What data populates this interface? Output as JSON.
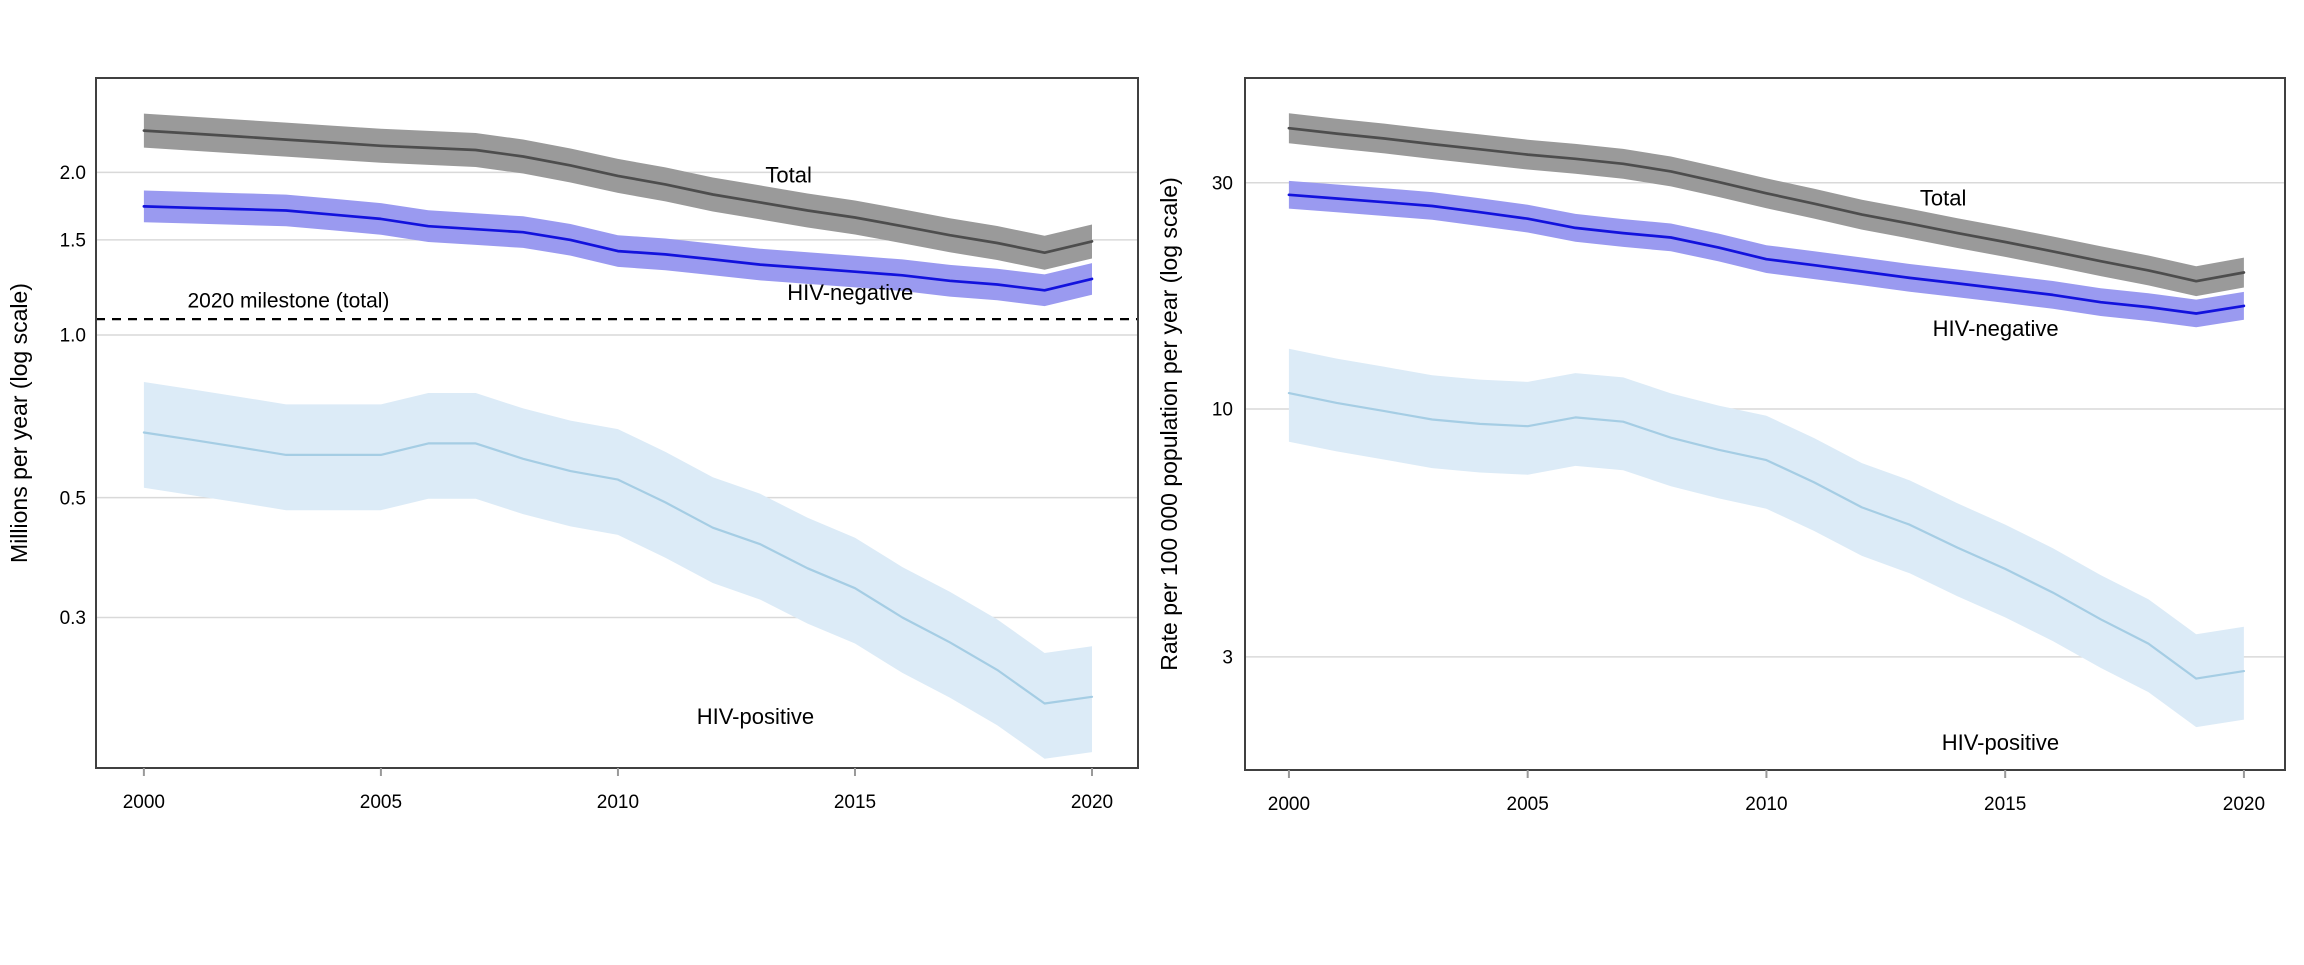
{
  "figure": {
    "background": "#ffffff",
    "border_color": "#404040",
    "gridline_color": "#d9d9d9",
    "tick_color": "#999999",
    "text_color": "#000000"
  },
  "chart_data": [
    {
      "id": "absolute-deaths",
      "type": "line",
      "title": "",
      "xlabel": "",
      "ylabel": "Millions per year (log scale)",
      "scale": "log",
      "grid": "horizontal-only",
      "legend_position": "none",
      "x_domain": [
        1998.99,
        2020.97
      ],
      "y_domain": [
        0.158,
        2.99
      ],
      "x_ticks": [
        2000,
        2005,
        2010,
        2015,
        2020
      ],
      "y_ticks": [
        {
          "value": 2.0,
          "label": "2.0"
        },
        {
          "value": 1.5,
          "label": "1.5"
        },
        {
          "value": 1.0,
          "label": "1.0"
        },
        {
          "value": 0.5,
          "label": "0.5"
        },
        {
          "value": 0.3,
          "label": "0.3"
        }
      ],
      "years": [
        2000,
        2001,
        2002,
        2003,
        2004,
        2005,
        2006,
        2007,
        2008,
        2009,
        2010,
        2011,
        2012,
        2013,
        2014,
        2015,
        2016,
        2017,
        2018,
        2019,
        2020
      ],
      "series": [
        {
          "name": "Total",
          "line_color": "#4d4d4d",
          "band_color": "#9a9a9a",
          "line_width": 2.7,
          "band_upper_ratio": 1.075,
          "band_lower_ratio": 0.93,
          "values": [
            2.39,
            2.36,
            2.33,
            2.3,
            2.27,
            2.24,
            2.22,
            2.2,
            2.14,
            2.06,
            1.97,
            1.9,
            1.82,
            1.76,
            1.7,
            1.65,
            1.59,
            1.53,
            1.48,
            1.42,
            1.49
          ]
        },
        {
          "name": "HIV-negative",
          "line_color": "#1212dd",
          "band_color": "#9a9af0",
          "line_width": 2.7,
          "band_upper_ratio": 1.07,
          "band_lower_ratio": 0.935,
          "values": [
            1.73,
            1.72,
            1.71,
            1.7,
            1.67,
            1.64,
            1.59,
            1.57,
            1.55,
            1.5,
            1.43,
            1.41,
            1.38,
            1.35,
            1.33,
            1.31,
            1.29,
            1.26,
            1.24,
            1.21,
            1.27
          ]
        },
        {
          "name": "HIV-positive",
          "line_color": "#a5cde4",
          "band_color": "#dcebf7",
          "line_width": 2.2,
          "band_upper_ratio": 1.24,
          "band_lower_ratio": 0.79,
          "values": [
            0.66,
            0.64,
            0.62,
            0.6,
            0.6,
            0.6,
            0.63,
            0.63,
            0.59,
            0.56,
            0.54,
            0.49,
            0.44,
            0.41,
            0.37,
            0.34,
            0.3,
            0.27,
            0.24,
            0.208,
            0.214
          ]
        }
      ],
      "annotations": [
        {
          "text": "Total",
          "year": 2013.6,
          "value": 1.98
        },
        {
          "text": "HIV-negative",
          "year": 2014.9,
          "value": 1.2
        },
        {
          "text": "HIV-positive",
          "year": 2012.9,
          "value": 0.197
        }
      ],
      "reference_line": {
        "value": 1.07,
        "style": "dashed",
        "color": "#000000",
        "label": {
          "text": "2020 milestone (total)",
          "year": 2003.05,
          "value": 1.16
        }
      }
    },
    {
      "id": "mortality-rates",
      "type": "line",
      "title": "",
      "xlabel": "",
      "ylabel": "Rate per 100 000 population per year (log scale)",
      "scale": "log",
      "grid": "horizontal-only",
      "legend_position": "none",
      "x_domain": [
        1999.08,
        2020.86
      ],
      "y_domain": [
        1.732,
        49.9
      ],
      "x_ticks": [
        2000,
        2005,
        2010,
        2015,
        2020
      ],
      "y_ticks": [
        {
          "value": 30,
          "label": "30"
        },
        {
          "value": 10,
          "label": "10"
        },
        {
          "value": 3,
          "label": "3"
        }
      ],
      "years": [
        2000,
        2001,
        2002,
        2003,
        2004,
        2005,
        2006,
        2007,
        2008,
        2009,
        2010,
        2011,
        2012,
        2013,
        2014,
        2015,
        2016,
        2017,
        2018,
        2019,
        2020
      ],
      "series": [
        {
          "name": "Total",
          "line_color": "#4d4d4d",
          "band_color": "#9a9a9a",
          "line_width": 2.7,
          "band_upper_ratio": 1.075,
          "band_lower_ratio": 0.93,
          "values": [
            39.1,
            38.1,
            37.2,
            36.2,
            35.3,
            34.4,
            33.7,
            32.9,
            31.7,
            30.1,
            28.5,
            27.1,
            25.7,
            24.6,
            23.5,
            22.5,
            21.5,
            20.5,
            19.6,
            18.6,
            19.4
          ]
        },
        {
          "name": "HIV-negative",
          "line_color": "#1212dd",
          "band_color": "#9a9af0",
          "line_width": 2.7,
          "band_upper_ratio": 1.07,
          "band_lower_ratio": 0.935,
          "values": [
            28.3,
            27.8,
            27.3,
            26.8,
            26.0,
            25.2,
            24.1,
            23.5,
            23.0,
            21.9,
            20.7,
            20.1,
            19.5,
            18.9,
            18.4,
            17.9,
            17.4,
            16.8,
            16.4,
            15.9,
            16.5
          ]
        },
        {
          "name": "HIV-positive",
          "line_color": "#a5cde4",
          "band_color": "#dcebf7",
          "line_width": 2.2,
          "band_upper_ratio": 1.24,
          "band_lower_ratio": 0.79,
          "values": [
            10.8,
            10.3,
            9.9,
            9.5,
            9.3,
            9.2,
            9.6,
            9.4,
            8.7,
            8.2,
            7.8,
            7.0,
            6.2,
            5.7,
            5.1,
            4.6,
            4.1,
            3.6,
            3.2,
            2.7,
            2.8
          ]
        }
      ],
      "annotations": [
        {
          "text": "Total",
          "year": 2013.7,
          "value": 27.9
        },
        {
          "text": "HIV-negative",
          "year": 2014.8,
          "value": 14.8
        },
        {
          "text": "HIV-positive",
          "year": 2014.9,
          "value": 1.98
        }
      ],
      "reference_line": null
    }
  ]
}
